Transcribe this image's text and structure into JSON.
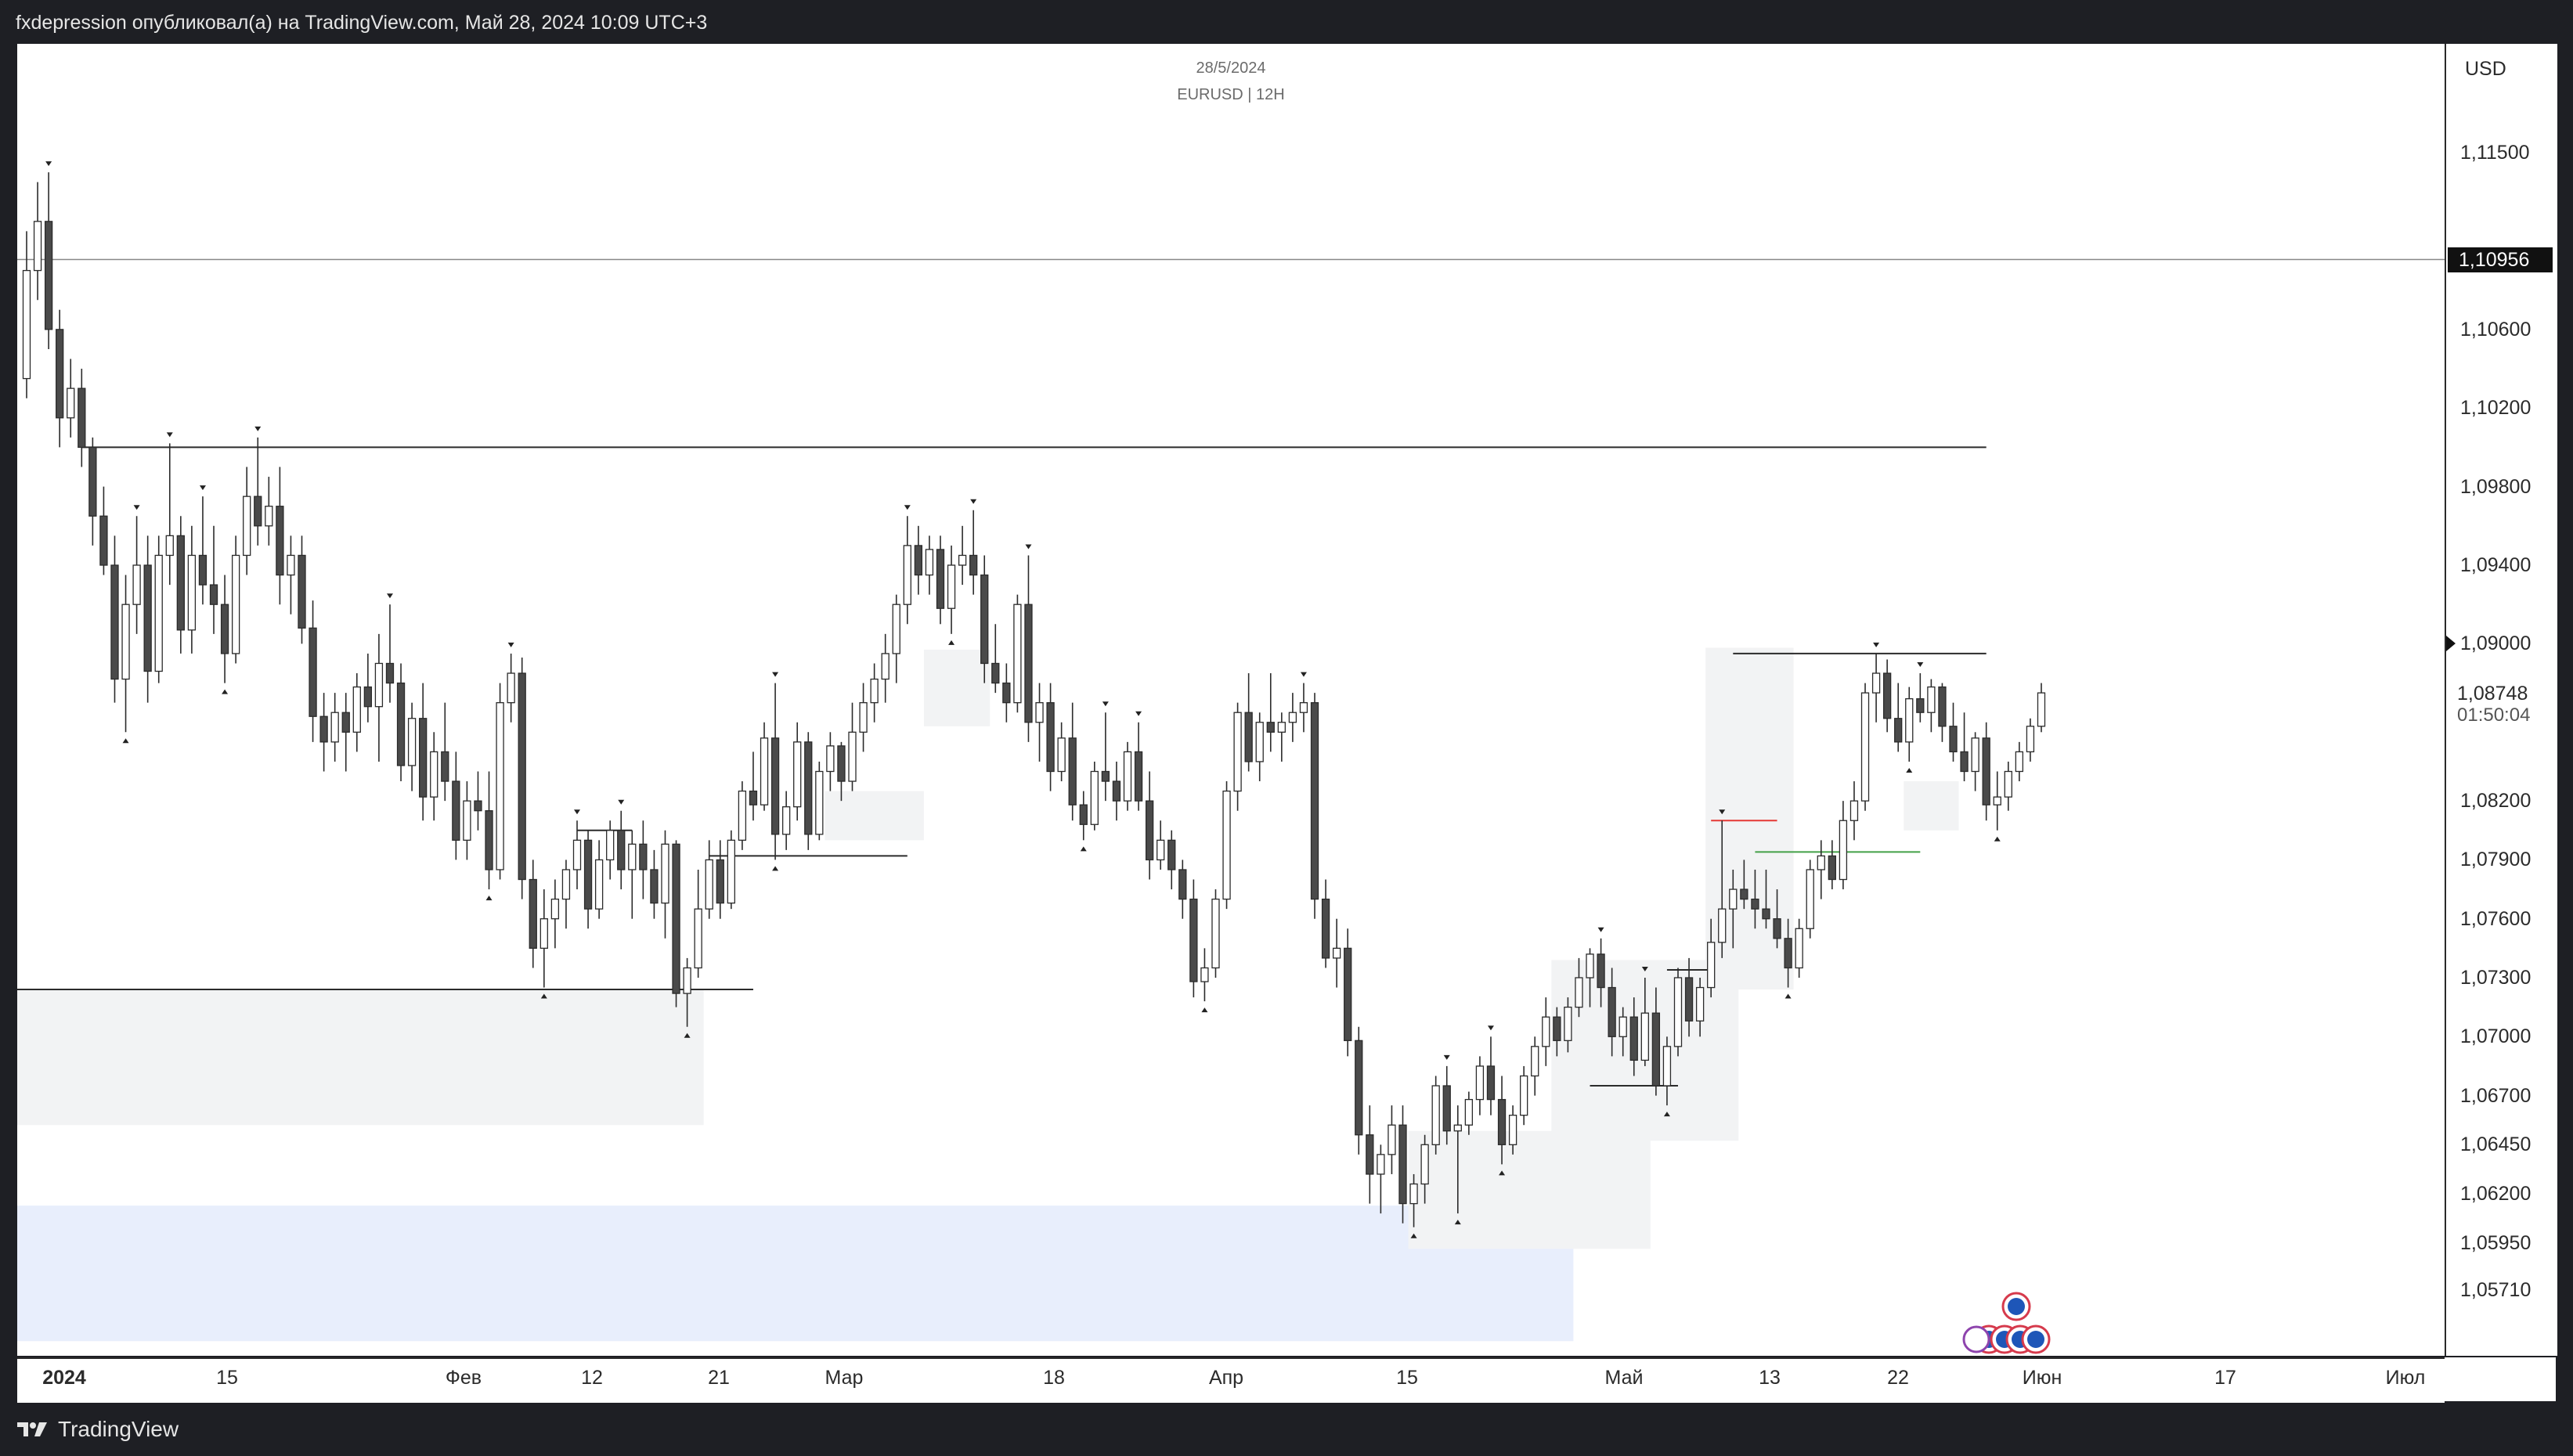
{
  "header": {
    "publish_line": "fxdepression опубликовал(а) на TradingView.com, Май 28, 2024 10:09 UTC+3"
  },
  "chart_header": {
    "date": "28/5/2024",
    "symbol": "EURUSD | 12H"
  },
  "footer": {
    "brand": "TradingView"
  },
  "price_axis": {
    "currency": "USD",
    "ticks": [
      "1,11500",
      "1,10600",
      "1,10200",
      "1,09800",
      "1,09400",
      "1,09000",
      "1,08200",
      "1,07900",
      "1,07600",
      "1,07300",
      "1,07000",
      "1,06700",
      "1,06450",
      "1,06200",
      "1,05950",
      "1,05710"
    ],
    "badge_price": "1,10956",
    "last_price": "1,08748",
    "countdown": "01:50:04"
  },
  "time_axis": {
    "labels": [
      {
        "text": "2024",
        "bold": true
      },
      {
        "text": "15"
      },
      {
        "text": "Фев"
      },
      {
        "text": "12"
      },
      {
        "text": "21"
      },
      {
        "text": "Мар"
      },
      {
        "text": "18"
      },
      {
        "text": "Апр"
      },
      {
        "text": "15"
      },
      {
        "text": "Май"
      },
      {
        "text": "13"
      },
      {
        "text": "22"
      },
      {
        "text": "Июн"
      },
      {
        "text": "17"
      },
      {
        "text": "Июл"
      }
    ]
  },
  "colors": {
    "bull_body": "#ffffff",
    "bear_body": "#4a4a4a",
    "wick": "#2b2b2b",
    "zone_grey": "#f2f3f4",
    "zone_blue": "#e8eefc",
    "line_red": "#e53935",
    "line_green": "#43a047"
  },
  "chart_data": {
    "type": "candlestick",
    "symbol": "EURUSD",
    "timeframe": "12H",
    "ylim": [
      1.0545,
      1.1195
    ],
    "candles": [
      [
        1.1035,
        1.111,
        1.1025,
        1.109
      ],
      [
        1.109,
        1.1135,
        1.1075,
        1.1115
      ],
      [
        1.1115,
        1.114,
        1.105,
        1.106
      ],
      [
        1.106,
        1.107,
        1.1,
        1.1015
      ],
      [
        1.1015,
        1.1045,
        1.1005,
        1.103
      ],
      [
        1.103,
        1.104,
        1.099,
        1.1
      ],
      [
        1.1,
        1.1005,
        1.095,
        1.0965
      ],
      [
        1.0965,
        1.098,
        1.0935,
        1.094
      ],
      [
        1.094,
        1.0955,
        1.087,
        1.0882
      ],
      [
        1.0882,
        1.0935,
        1.0855,
        1.092
      ],
      [
        1.092,
        1.0965,
        1.0905,
        1.094
      ],
      [
        1.094,
        1.0955,
        1.087,
        1.0886
      ],
      [
        1.0886,
        1.0955,
        1.088,
        1.0945
      ],
      [
        1.0945,
        1.1002,
        1.093,
        1.0955
      ],
      [
        1.0955,
        1.0965,
        1.0895,
        1.0907
      ],
      [
        1.0907,
        1.096,
        1.0895,
        1.0945
      ],
      [
        1.0945,
        1.0975,
        1.092,
        1.093
      ],
      [
        1.093,
        1.096,
        1.0905,
        1.092
      ],
      [
        1.092,
        1.0935,
        1.088,
        1.0895
      ],
      [
        1.0895,
        1.0955,
        1.089,
        1.0945
      ],
      [
        1.0945,
        1.099,
        1.0935,
        1.0975
      ],
      [
        1.0975,
        1.1005,
        1.095,
        1.096
      ],
      [
        1.096,
        1.0985,
        1.095,
        1.097
      ],
      [
        1.097,
        1.099,
        1.092,
        1.0935
      ],
      [
        1.0935,
        1.0955,
        1.0915,
        1.0945
      ],
      [
        1.0945,
        1.0955,
        1.09,
        1.0908
      ],
      [
        1.0908,
        1.0922,
        1.085,
        1.0863
      ],
      [
        1.0863,
        1.0875,
        1.0835,
        1.085
      ],
      [
        1.085,
        1.0875,
        1.084,
        1.0865
      ],
      [
        1.0865,
        1.0875,
        1.0835,
        1.0855
      ],
      [
        1.0855,
        1.0885,
        1.0845,
        1.0878
      ],
      [
        1.0878,
        1.0895,
        1.086,
        1.0868
      ],
      [
        1.0868,
        1.0905,
        1.084,
        1.089
      ],
      [
        1.089,
        1.092,
        1.087,
        1.088
      ],
      [
        1.088,
        1.089,
        1.083,
        1.0838
      ],
      [
        1.0838,
        1.087,
        1.0825,
        1.0862
      ],
      [
        1.0862,
        1.088,
        1.081,
        1.0822
      ],
      [
        1.0822,
        1.0855,
        1.081,
        1.0845
      ],
      [
        1.0845,
        1.087,
        1.082,
        1.083
      ],
      [
        1.083,
        1.0845,
        1.079,
        1.08
      ],
      [
        1.08,
        1.083,
        1.079,
        1.082
      ],
      [
        1.082,
        1.0835,
        1.0805,
        1.0815
      ],
      [
        1.0815,
        1.0835,
        1.0775,
        1.0785
      ],
      [
        1.0785,
        1.088,
        1.078,
        1.087
      ],
      [
        1.087,
        1.0895,
        1.086,
        1.0885
      ],
      [
        1.0885,
        1.0893,
        1.077,
        1.078
      ],
      [
        1.078,
        1.079,
        1.0735,
        1.0745
      ],
      [
        1.0745,
        1.0775,
        1.0725,
        1.076
      ],
      [
        1.076,
        1.078,
        1.0745,
        1.077
      ],
      [
        1.077,
        1.079,
        1.0755,
        1.0785
      ],
      [
        1.0785,
        1.081,
        1.0775,
        1.08
      ],
      [
        1.08,
        1.0805,
        1.0755,
        1.0765
      ],
      [
        1.0765,
        1.08,
        1.076,
        1.079
      ],
      [
        1.079,
        1.081,
        1.078,
        1.0805
      ],
      [
        1.0805,
        1.0815,
        1.0775,
        1.0785
      ],
      [
        1.0785,
        1.0805,
        1.076,
        1.0798
      ],
      [
        1.0798,
        1.081,
        1.077,
        1.0785
      ],
      [
        1.0785,
        1.0795,
        1.076,
        1.0768
      ],
      [
        1.0768,
        1.0805,
        1.075,
        1.0798
      ],
      [
        1.0798,
        1.08,
        1.0715,
        1.0722
      ],
      [
        1.0722,
        1.074,
        1.0705,
        1.0735
      ],
      [
        1.0735,
        1.0785,
        1.073,
        1.0765
      ],
      [
        1.0765,
        1.08,
        1.076,
        1.079
      ],
      [
        1.079,
        1.08,
        1.076,
        1.0768
      ],
      [
        1.0768,
        1.0805,
        1.0765,
        1.08
      ],
      [
        1.08,
        1.083,
        1.0795,
        1.0825
      ],
      [
        1.0825,
        1.0845,
        1.081,
        1.0818
      ],
      [
        1.0818,
        1.086,
        1.0815,
        1.0852
      ],
      [
        1.0852,
        1.088,
        1.079,
        1.0803
      ],
      [
        1.0803,
        1.0825,
        1.0795,
        1.0817
      ],
      [
        1.0817,
        1.086,
        1.081,
        1.085
      ],
      [
        1.085,
        1.0855,
        1.0795,
        1.0803
      ],
      [
        1.0803,
        1.084,
        1.08,
        1.0835
      ],
      [
        1.0835,
        1.0855,
        1.0825,
        1.0848
      ],
      [
        1.0848,
        1.085,
        1.082,
        1.083
      ],
      [
        1.083,
        1.087,
        1.0825,
        1.0855
      ],
      [
        1.0855,
        1.088,
        1.0845,
        1.087
      ],
      [
        1.087,
        1.089,
        1.086,
        1.0882
      ],
      [
        1.0882,
        1.0905,
        1.087,
        1.0895
      ],
      [
        1.0895,
        1.0925,
        1.088,
        1.092
      ],
      [
        1.092,
        1.0965,
        1.091,
        1.095
      ],
      [
        1.095,
        1.096,
        1.0925,
        1.0935
      ],
      [
        1.0935,
        1.0955,
        1.0925,
        1.0948
      ],
      [
        1.0948,
        1.0955,
        1.091,
        1.0918
      ],
      [
        1.0918,
        1.095,
        1.0905,
        1.094
      ],
      [
        1.094,
        1.096,
        1.093,
        1.0945
      ],
      [
        1.0945,
        1.0968,
        1.0925,
        1.0935
      ],
      [
        1.0935,
        1.0945,
        1.088,
        1.089
      ],
      [
        1.089,
        1.091,
        1.0875,
        1.088
      ],
      [
        1.088,
        1.089,
        1.086,
        1.087
      ],
      [
        1.087,
        1.0925,
        1.0865,
        1.092
      ],
      [
        1.092,
        1.0945,
        1.085,
        1.086
      ],
      [
        1.086,
        1.088,
        1.084,
        1.087
      ],
      [
        1.087,
        1.088,
        1.0825,
        1.0835
      ],
      [
        1.0835,
        1.086,
        1.083,
        1.0852
      ],
      [
        1.0852,
        1.087,
        1.081,
        1.0818
      ],
      [
        1.0818,
        1.0825,
        1.08,
        1.0808
      ],
      [
        1.0808,
        1.084,
        1.0805,
        1.0835
      ],
      [
        1.0835,
        1.0865,
        1.082,
        1.083
      ],
      [
        1.083,
        1.084,
        1.081,
        1.082
      ],
      [
        1.082,
        1.085,
        1.0815,
        1.0845
      ],
      [
        1.0845,
        1.086,
        1.0815,
        1.082
      ],
      [
        1.082,
        1.0835,
        1.078,
        1.079
      ],
      [
        1.079,
        1.081,
        1.0785,
        1.08
      ],
      [
        1.08,
        1.0805,
        1.0775,
        1.0785
      ],
      [
        1.0785,
        1.079,
        1.076,
        1.077
      ],
      [
        1.077,
        1.078,
        1.072,
        1.0728
      ],
      [
        1.0728,
        1.0745,
        1.0718,
        1.0735
      ],
      [
        1.0735,
        1.0775,
        1.073,
        1.077
      ],
      [
        1.077,
        1.083,
        1.0765,
        1.0825
      ],
      [
        1.0825,
        1.087,
        1.0815,
        1.0865
      ],
      [
        1.0865,
        1.0885,
        1.0835,
        1.084
      ],
      [
        1.084,
        1.0865,
        1.083,
        1.086
      ],
      [
        1.086,
        1.0885,
        1.0845,
        1.0855
      ],
      [
        1.0855,
        1.0865,
        1.084,
        1.086
      ],
      [
        1.086,
        1.0875,
        1.085,
        1.0865
      ],
      [
        1.0865,
        1.088,
        1.0855,
        1.087
      ],
      [
        1.087,
        1.0875,
        1.076,
        1.077
      ],
      [
        1.077,
        1.078,
        1.0735,
        1.074
      ],
      [
        1.074,
        1.076,
        1.0725,
        1.0745
      ],
      [
        1.0745,
        1.0755,
        1.069,
        1.0698
      ],
      [
        1.0698,
        1.0705,
        1.064,
        1.065
      ],
      [
        1.065,
        1.0665,
        1.0615,
        1.063
      ],
      [
        1.063,
        1.0645,
        1.061,
        1.064
      ],
      [
        1.064,
        1.0665,
        1.063,
        1.0655
      ],
      [
        1.0655,
        1.0665,
        1.0605,
        1.0615
      ],
      [
        1.0615,
        1.063,
        1.0603,
        1.0625
      ],
      [
        1.0625,
        1.065,
        1.0615,
        1.0645
      ],
      [
        1.0645,
        1.068,
        1.064,
        1.0675
      ],
      [
        1.0675,
        1.0685,
        1.0645,
        1.0652
      ],
      [
        1.0652,
        1.0665,
        1.061,
        1.0655
      ],
      [
        1.0655,
        1.0672,
        1.065,
        1.0668
      ],
      [
        1.0668,
        1.069,
        1.066,
        1.0685
      ],
      [
        1.0685,
        1.07,
        1.066,
        1.0668
      ],
      [
        1.0668,
        1.068,
        1.0635,
        1.0645
      ],
      [
        1.0645,
        1.0665,
        1.064,
        1.066
      ],
      [
        1.066,
        1.0685,
        1.0655,
        1.068
      ],
      [
        1.068,
        1.07,
        1.067,
        1.0695
      ],
      [
        1.0695,
        1.072,
        1.0685,
        1.071
      ],
      [
        1.071,
        1.0715,
        1.069,
        1.0698
      ],
      [
        1.0698,
        1.072,
        1.0692,
        1.0715
      ],
      [
        1.0715,
        1.074,
        1.071,
        1.073
      ],
      [
        1.073,
        1.0745,
        1.0715,
        1.0742
      ],
      [
        1.0742,
        1.075,
        1.0715,
        1.0725
      ],
      [
        1.0725,
        1.0735,
        1.069,
        1.07
      ],
      [
        1.07,
        1.0715,
        1.069,
        1.071
      ],
      [
        1.071,
        1.072,
        1.068,
        1.0688
      ],
      [
        1.0688,
        1.073,
        1.0685,
        1.0712
      ],
      [
        1.0712,
        1.0725,
        1.067,
        1.0675
      ],
      [
        1.0675,
        1.07,
        1.0665,
        1.0695
      ],
      [
        1.0695,
        1.0735,
        1.069,
        1.073
      ],
      [
        1.073,
        1.074,
        1.07,
        1.0708
      ],
      [
        1.0708,
        1.073,
        1.07,
        1.0725
      ],
      [
        1.0725,
        1.076,
        1.072,
        1.0748
      ],
      [
        1.0748,
        1.081,
        1.074,
        1.0765
      ],
      [
        1.0765,
        1.0785,
        1.0745,
        1.0775
      ],
      [
        1.0775,
        1.079,
        1.0765,
        1.077
      ],
      [
        1.077,
        1.0785,
        1.0755,
        1.0765
      ],
      [
        1.0765,
        1.0785,
        1.0755,
        1.076
      ],
      [
        1.076,
        1.0775,
        1.0745,
        1.075
      ],
      [
        1.075,
        1.076,
        1.0725,
        1.0735
      ],
      [
        1.0735,
        1.076,
        1.073,
        1.0755
      ],
      [
        1.0755,
        1.079,
        1.075,
        1.0785
      ],
      [
        1.0785,
        1.08,
        1.077,
        1.0792
      ],
      [
        1.0792,
        1.08,
        1.0775,
        1.078
      ],
      [
        1.078,
        1.082,
        1.0775,
        1.081
      ],
      [
        1.081,
        1.083,
        1.08,
        1.082
      ],
      [
        1.082,
        1.088,
        1.0815,
        1.0875
      ],
      [
        1.0875,
        1.0895,
        1.086,
        1.0885
      ],
      [
        1.0885,
        1.0892,
        1.0855,
        1.0862
      ],
      [
        1.0862,
        1.088,
        1.0845,
        1.085
      ],
      [
        1.085,
        1.0878,
        1.084,
        1.0872
      ],
      [
        1.0872,
        1.0885,
        1.086,
        1.0865
      ],
      [
        1.0865,
        1.0882,
        1.0855,
        1.0878
      ],
      [
        1.0878,
        1.088,
        1.085,
        1.0858
      ],
      [
        1.0858,
        1.087,
        1.084,
        1.0845
      ],
      [
        1.0845,
        1.0865,
        1.083,
        1.0835
      ],
      [
        1.0835,
        1.0855,
        1.0825,
        1.0852
      ],
      [
        1.0852,
        1.086,
        1.081,
        1.0818
      ],
      [
        1.0818,
        1.0835,
        1.0805,
        1.0822
      ],
      [
        1.0822,
        1.084,
        1.0815,
        1.0835
      ],
      [
        1.0835,
        1.085,
        1.083,
        1.0845
      ],
      [
        1.0845,
        1.0862,
        1.084,
        1.0858
      ],
      [
        1.0858,
        1.088,
        1.0855,
        1.0875
      ]
    ],
    "horizontal_lines": [
      {
        "price": 1.10956,
        "label": "1,10956",
        "span": "full"
      },
      {
        "price": 1.1,
        "from": 5,
        "to": 178
      },
      {
        "price": 1.0895,
        "from": 155,
        "to": 178
      },
      {
        "price": 1.0724,
        "from": 0,
        "to": 66
      },
      {
        "price": 1.0805,
        "from": 50,
        "to": 55
      },
      {
        "price": 1.0792,
        "from": 62,
        "to": 80
      },
      {
        "price": 1.0675,
        "from": 142,
        "to": 150
      },
      {
        "price": 1.0734,
        "from": 149,
        "to": 153
      },
      {
        "price": 1.081,
        "from": 153,
        "to": 159,
        "color": "red"
      },
      {
        "price": 1.0794,
        "from": 157,
        "to": 172,
        "color": "green"
      }
    ],
    "zones": [
      {
        "from": 0,
        "to": 61,
        "low": 1.0655,
        "high": 1.0724,
        "color": "grey"
      },
      {
        "from": 0,
        "to": 140,
        "low": 1.0545,
        "high": 1.0614,
        "color": "blue"
      },
      {
        "from": 82,
        "to": 87,
        "low": 1.0858,
        "high": 1.0897,
        "color": "grey"
      },
      {
        "from": 73,
        "to": 81,
        "low": 1.08,
        "high": 1.0825,
        "color": "grey"
      },
      {
        "from": 126,
        "to": 147,
        "low": 1.0592,
        "high": 1.0652,
        "color": "grey"
      },
      {
        "from": 139,
        "to": 155,
        "low": 1.0647,
        "high": 1.0739,
        "color": "grey"
      },
      {
        "from": 153,
        "to": 160,
        "low": 1.0724,
        "high": 1.0898,
        "color": "grey"
      },
      {
        "from": 171,
        "to": 175,
        "low": 1.0805,
        "high": 1.083,
        "color": "grey"
      }
    ]
  }
}
